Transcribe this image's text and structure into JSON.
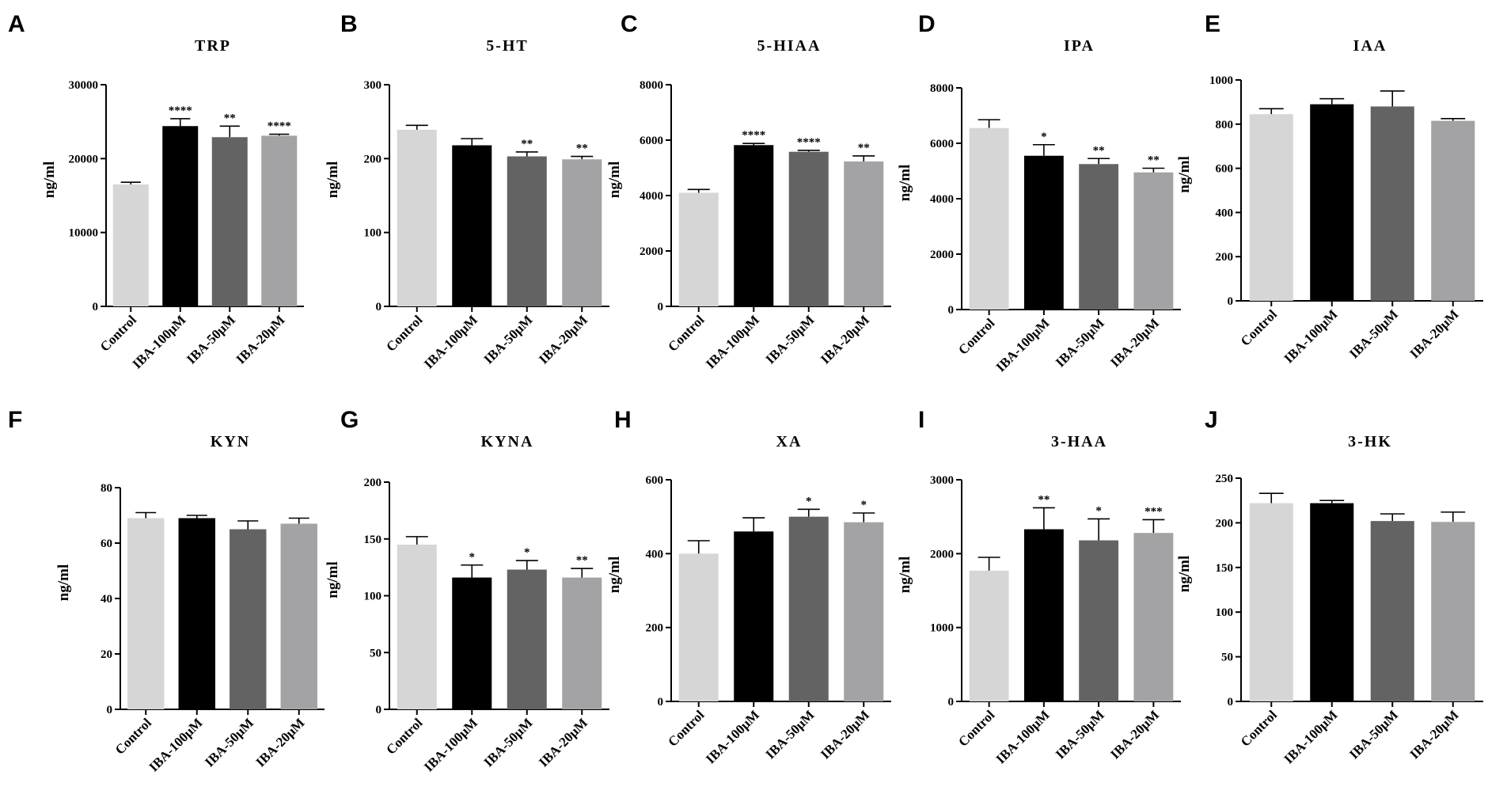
{
  "colors": [
    "#d6d6d6",
    "#000000",
    "#636363",
    "#a3a3a5"
  ],
  "chart_data": [
    {
      "panel": "A",
      "title": "TRP",
      "type": "bar",
      "ylabel": "ng/ml",
      "categories": [
        "Control",
        "IBA-100μM",
        "IBA-50μM",
        "IBA-20μM"
      ],
      "values": [
        16500,
        24400,
        22900,
        23100
      ],
      "errors": [
        300,
        1000,
        1500,
        200
      ],
      "significance": [
        "",
        "****",
        "**",
        "****"
      ],
      "ylim": [
        0,
        30000
      ],
      "yticks": [
        0,
        10000,
        20000,
        30000
      ]
    },
    {
      "panel": "B",
      "title": "5-HT",
      "type": "bar",
      "ylabel": "ng/ml",
      "categories": [
        "Control",
        "IBA-100μM",
        "IBA-50μM",
        "IBA-20μM"
      ],
      "values": [
        239,
        218,
        203,
        199
      ],
      "errors": [
        6,
        9,
        6,
        4
      ],
      "significance": [
        "",
        "",
        "**",
        "**"
      ],
      "ylim": [
        0,
        300
      ],
      "yticks": [
        0,
        100,
        200,
        300
      ]
    },
    {
      "panel": "C",
      "title": "5-HIAA",
      "type": "bar",
      "ylabel": "ng/ml",
      "categories": [
        "Control",
        "IBA-100μM",
        "IBA-50μM",
        "IBA-20μM"
      ],
      "values": [
        4100,
        5820,
        5580,
        5230
      ],
      "errors": [
        120,
        60,
        50,
        200
      ],
      "significance": [
        "",
        "****",
        "****",
        "**"
      ],
      "ylim": [
        0,
        8000
      ],
      "yticks": [
        0,
        2000,
        4000,
        6000,
        8000
      ]
    },
    {
      "panel": "D",
      "title": "IPA",
      "type": "bar",
      "ylabel": "ng/ml",
      "categories": [
        "Control",
        "IBA-100μM",
        "IBA-50μM",
        "IBA-20μM"
      ],
      "values": [
        6550,
        5550,
        5250,
        4950
      ],
      "errors": [
        300,
        400,
        200,
        150
      ],
      "significance": [
        "",
        "*",
        "**",
        "**"
      ],
      "ylim": [
        0,
        8000
      ],
      "yticks": [
        0,
        2000,
        4000,
        6000,
        8000
      ]
    },
    {
      "panel": "E",
      "title": "IAA",
      "type": "bar",
      "ylabel": "ng/ml",
      "categories": [
        "Control",
        "IBA-100μM",
        "IBA-50μM",
        "IBA-20μM"
      ],
      "values": [
        845,
        890,
        880,
        815
      ],
      "errors": [
        25,
        25,
        70,
        10
      ],
      "significance": [
        "",
        "",
        "",
        ""
      ],
      "ylim": [
        0,
        1000
      ],
      "yticks": [
        0,
        200,
        400,
        600,
        800,
        1000
      ]
    },
    {
      "panel": "F",
      "title": "KYN",
      "type": "bar",
      "ylabel": "ng/ml",
      "categories": [
        "Control",
        "IBA-100μM",
        "IBA-50μM",
        "IBA-20μM"
      ],
      "values": [
        69,
        69,
        65,
        67
      ],
      "errors": [
        2,
        1,
        3,
        2
      ],
      "significance": [
        "",
        "",
        "",
        ""
      ],
      "ylim": [
        0,
        80
      ],
      "yticks": [
        0,
        20,
        40,
        60,
        80
      ]
    },
    {
      "panel": "G",
      "title": "KYNA",
      "type": "bar",
      "ylabel": "ng/ml",
      "categories": [
        "Control",
        "IBA-100μM",
        "IBA-50μM",
        "IBA-20μM"
      ],
      "values": [
        145,
        116,
        123,
        116
      ],
      "errors": [
        7,
        11,
        8,
        8
      ],
      "significance": [
        "",
        "*",
        "*",
        "**"
      ],
      "ylim": [
        0,
        200
      ],
      "yticks": [
        0,
        50,
        100,
        150,
        200
      ]
    },
    {
      "panel": "H",
      "title": "XA",
      "type": "bar",
      "ylabel": "ng/ml",
      "categories": [
        "Control",
        "IBA-100μM",
        "IBA-50μM",
        "IBA-20μM"
      ],
      "values": [
        400,
        460,
        500,
        485
      ],
      "errors": [
        35,
        37,
        20,
        25
      ],
      "significance": [
        "",
        "",
        "*",
        "*"
      ],
      "ylim": [
        0,
        600
      ],
      "yticks": [
        0,
        200,
        400,
        600
      ]
    },
    {
      "panel": "I",
      "title": "3-HAA",
      "type": "bar",
      "ylabel": "ng/ml",
      "categories": [
        "Control",
        "IBA-100μM",
        "IBA-50μM",
        "IBA-20μM"
      ],
      "values": [
        1770,
        2330,
        2180,
        2280
      ],
      "errors": [
        180,
        290,
        290,
        180
      ],
      "significance": [
        "",
        "**",
        "*",
        "***"
      ],
      "ylim": [
        0,
        3000
      ],
      "yticks": [
        0,
        1000,
        2000,
        3000
      ]
    },
    {
      "panel": "J",
      "title": "3-HK",
      "type": "bar",
      "ylabel": "ng/ml",
      "categories": [
        "Control",
        "IBA-100μM",
        "IBA-50μM",
        "IBA-20μM"
      ],
      "values": [
        222,
        222,
        202,
        201
      ],
      "errors": [
        11,
        3,
        8,
        11
      ],
      "significance": [
        "",
        "",
        "",
        ""
      ],
      "ylim": [
        0,
        250
      ],
      "yticks": [
        0,
        50,
        100,
        150,
        200,
        250
      ]
    }
  ]
}
